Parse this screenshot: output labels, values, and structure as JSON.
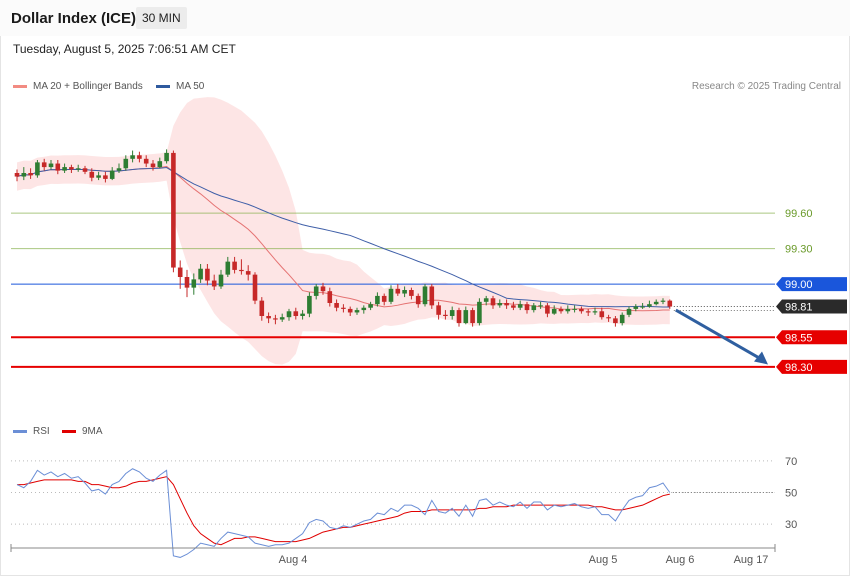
{
  "header": {
    "title": "Dollar Index (ICE)",
    "interval": "30 MIN",
    "timestamp": "Tuesday, August 5, 2025 7:06:51 AM CET"
  },
  "legend": {
    "ma20_label": "MA 20 + Bollinger Bands",
    "ma50_label": "MA 50",
    "credit": "Research © 2025 Trading Central",
    "rsi_label": "RSI",
    "ma9_label": "9MA"
  },
  "colors": {
    "up": "#2e7d32",
    "down": "#c62828",
    "band_fill": "#fde2e2",
    "ma20": "#e57373",
    "ma50": "#3f5fa8",
    "resistance": "#1a56db",
    "support": "#e60000",
    "pivot_green": "#86b04b",
    "last_price": "#2a2a2a",
    "forecast_arrow": "#2f5fa0",
    "rsi": "#6b8fd6",
    "rsi_ma": "#e00000"
  },
  "chart_data": [
    {
      "type": "candlestick",
      "ylim": [
        97.85,
        100.6
      ],
      "xlabels": [
        "Aug 4",
        "Aug 5",
        "Aug 6",
        "Aug 17"
      ],
      "levels": [
        {
          "value": 99.6,
          "label": "99.60",
          "kind": "pivot"
        },
        {
          "value": 99.3,
          "label": "99.30",
          "kind": "pivot"
        },
        {
          "value": 99.0,
          "label": "99.00",
          "kind": "resistance"
        },
        {
          "value": 98.55,
          "label": "98.55",
          "kind": "support"
        },
        {
          "value": 98.3,
          "label": "98.30",
          "kind": "support"
        }
      ],
      "last_price": {
        "value": 98.81,
        "label": "98.81"
      },
      "forecast": {
        "from": 98.78,
        "to": 98.32
      },
      "candles": [
        [
          99.94,
          99.91,
          99.97,
          99.87
        ],
        [
          99.91,
          99.94,
          99.99,
          99.88
        ],
        [
          99.94,
          99.92,
          99.98,
          99.89
        ],
        [
          99.92,
          100.03,
          100.05,
          99.9
        ],
        [
          100.03,
          99.99,
          100.06,
          99.96
        ],
        [
          99.99,
          100.02,
          100.05,
          99.97
        ],
        [
          100.02,
          99.96,
          100.05,
          99.93
        ],
        [
          99.96,
          99.99,
          100.02,
          99.94
        ],
        [
          99.99,
          99.97,
          100.01,
          99.94
        ],
        [
          99.97,
          99.98,
          100.01,
          99.95
        ],
        [
          99.98,
          99.95,
          100.0,
          99.93
        ],
        [
          99.95,
          99.9,
          99.98,
          99.87
        ],
        [
          99.9,
          99.92,
          99.95,
          99.88
        ],
        [
          99.92,
          99.89,
          99.95,
          99.86
        ],
        [
          99.89,
          99.96,
          99.99,
          99.88
        ],
        [
          99.96,
          99.98,
          100.02,
          99.94
        ],
        [
          99.98,
          100.06,
          100.09,
          99.96
        ],
        [
          100.06,
          100.09,
          100.13,
          100.03
        ],
        [
          100.09,
          100.06,
          100.12,
          100.03
        ],
        [
          100.06,
          100.02,
          100.09,
          99.99
        ],
        [
          100.02,
          99.99,
          100.05,
          99.96
        ],
        [
          99.99,
          100.04,
          100.07,
          99.98
        ],
        [
          100.04,
          100.11,
          100.14,
          100.02
        ],
        [
          100.11,
          99.14,
          100.13,
          99.1
        ],
        [
          99.14,
          99.06,
          99.2,
          98.96
        ],
        [
          99.06,
          98.97,
          99.12,
          98.89
        ],
        [
          98.97,
          99.04,
          99.09,
          98.91
        ],
        [
          99.04,
          99.13,
          99.17,
          99.01
        ],
        [
          99.13,
          99.03,
          99.17,
          98.99
        ],
        [
          99.03,
          98.98,
          99.08,
          98.95
        ],
        [
          98.98,
          99.08,
          99.12,
          98.96
        ],
        [
          99.08,
          99.19,
          99.23,
          99.06
        ],
        [
          99.19,
          99.12,
          99.23,
          99.09
        ],
        [
          99.12,
          99.11,
          99.21,
          99.08
        ],
        [
          99.11,
          99.08,
          99.16,
          99.03
        ],
        [
          99.08,
          98.86,
          99.1,
          98.83
        ],
        [
          98.86,
          98.73,
          98.89,
          98.69
        ],
        [
          98.73,
          98.71,
          98.76,
          98.67
        ],
        [
          98.71,
          98.7,
          98.74,
          98.66
        ],
        [
          98.7,
          98.72,
          98.75,
          98.68
        ],
        [
          98.72,
          98.77,
          98.79,
          98.69
        ],
        [
          98.77,
          98.73,
          98.8,
          98.7
        ],
        [
          98.73,
          98.75,
          98.78,
          98.7
        ],
        [
          98.75,
          98.9,
          98.93,
          98.72
        ],
        [
          98.9,
          98.98,
          99.0,
          98.87
        ],
        [
          98.98,
          98.94,
          99.01,
          98.91
        ],
        [
          98.94,
          98.84,
          98.97,
          98.81
        ],
        [
          98.84,
          98.8,
          98.87,
          98.77
        ],
        [
          98.8,
          98.79,
          98.83,
          98.76
        ],
        [
          98.79,
          98.76,
          98.81,
          98.73
        ],
        [
          98.76,
          98.78,
          98.8,
          98.74
        ],
        [
          98.78,
          98.8,
          98.82,
          98.75
        ],
        [
          98.8,
          98.83,
          98.85,
          98.78
        ],
        [
          98.83,
          98.9,
          98.93,
          98.81
        ],
        [
          98.9,
          98.85,
          98.92,
          98.82
        ],
        [
          98.85,
          98.96,
          98.99,
          98.83
        ],
        [
          98.96,
          98.92,
          99.0,
          98.9
        ],
        [
          98.92,
          98.95,
          98.98,
          98.89
        ],
        [
          98.95,
          98.9,
          98.97,
          98.87
        ],
        [
          98.9,
          98.83,
          98.92,
          98.8
        ],
        [
          98.83,
          98.98,
          99.0,
          98.81
        ],
        [
          98.98,
          98.82,
          99.0,
          98.79
        ],
        [
          98.82,
          98.74,
          98.85,
          98.7
        ],
        [
          98.74,
          98.73,
          98.78,
          98.7
        ],
        [
          98.73,
          98.78,
          98.81,
          98.7
        ],
        [
          98.78,
          98.67,
          98.8,
          98.64
        ],
        [
          98.67,
          98.78,
          98.81,
          98.66
        ],
        [
          98.78,
          98.67,
          98.8,
          98.64
        ],
        [
          98.67,
          98.85,
          98.88,
          98.65
        ],
        [
          98.85,
          98.88,
          98.9,
          98.82
        ],
        [
          98.88,
          98.82,
          98.9,
          98.79
        ],
        [
          98.82,
          98.84,
          98.87,
          98.8
        ],
        [
          98.84,
          98.82,
          98.87,
          98.79
        ],
        [
          98.82,
          98.8,
          98.85,
          98.78
        ],
        [
          98.8,
          98.83,
          98.86,
          98.78
        ],
        [
          98.83,
          98.78,
          98.85,
          98.75
        ],
        [
          98.78,
          98.82,
          98.84,
          98.76
        ],
        [
          98.82,
          98.82,
          98.85,
          98.79
        ],
        [
          98.82,
          98.75,
          98.84,
          98.72
        ],
        [
          98.75,
          98.79,
          98.82,
          98.74
        ],
        [
          98.79,
          98.77,
          98.81,
          98.75
        ],
        [
          98.77,
          98.79,
          98.82,
          98.75
        ],
        [
          98.79,
          98.79,
          98.82,
          98.76
        ],
        [
          98.79,
          98.77,
          98.81,
          98.75
        ],
        [
          98.77,
          98.76,
          98.79,
          98.73
        ],
        [
          98.76,
          98.77,
          98.8,
          98.74
        ],
        [
          98.77,
          98.72,
          98.8,
          98.7
        ],
        [
          98.72,
          98.71,
          98.74,
          98.68
        ],
        [
          98.71,
          98.67,
          98.73,
          98.64
        ],
        [
          98.67,
          98.74,
          98.76,
          98.65
        ],
        [
          98.74,
          98.79,
          98.81,
          98.72
        ],
        [
          98.79,
          98.81,
          98.83,
          98.77
        ],
        [
          98.81,
          98.81,
          98.84,
          98.79
        ],
        [
          98.81,
          98.83,
          98.86,
          98.8
        ],
        [
          98.83,
          98.85,
          98.87,
          98.82
        ],
        [
          98.85,
          98.86,
          98.88,
          98.83
        ],
        [
          98.86,
          98.81,
          98.87,
          98.79
        ]
      ]
    },
    {
      "type": "line",
      "ylim": [
        20,
        80
      ],
      "yticks": [
        {
          "value": 70,
          "label": "70"
        },
        {
          "value": 50,
          "label": "50"
        },
        {
          "value": 30,
          "label": "30"
        }
      ],
      "series": [
        {
          "name": "RSI",
          "values": [
            55,
            53,
            57,
            64,
            61,
            63,
            60,
            62,
            59,
            60,
            56,
            51,
            52,
            49,
            55,
            57,
            62,
            65,
            63,
            59,
            57,
            61,
            64,
            10,
            9,
            11,
            14,
            18,
            17,
            16,
            21,
            25,
            24,
            23,
            22,
            18,
            17,
            16,
            17,
            17,
            18,
            21,
            24,
            31,
            33,
            32,
            28,
            27,
            29,
            28,
            30,
            32,
            33,
            37,
            36,
            40,
            38,
            42,
            42,
            40,
            36,
            45,
            38,
            37,
            40,
            35,
            42,
            35,
            45,
            46,
            42,
            44,
            42,
            41,
            44,
            40,
            44,
            44,
            39,
            42,
            41,
            42,
            43,
            41,
            40,
            41,
            36,
            36,
            32,
            39,
            45,
            47,
            48,
            53,
            54,
            56,
            50
          ]
        },
        {
          "name": "9MA",
          "values": [
            55,
            55,
            56,
            57,
            58,
            58,
            58,
            58,
            58,
            57,
            57,
            55,
            55,
            54,
            53,
            53,
            54,
            56,
            57,
            57,
            58,
            59,
            60,
            55,
            46,
            37,
            29,
            24,
            21,
            18,
            17,
            19,
            21,
            21,
            22,
            22,
            21,
            20,
            19,
            19,
            19,
            19,
            20,
            21,
            23,
            25,
            26,
            27,
            28,
            28,
            29,
            30,
            31,
            32,
            33,
            34,
            35,
            37,
            38,
            38,
            38,
            39,
            39,
            39,
            39,
            39,
            39,
            39,
            40,
            40,
            41,
            41,
            41,
            42,
            42,
            42,
            42,
            42,
            42,
            42,
            42,
            42,
            42,
            42,
            42,
            41,
            41,
            40,
            39,
            39,
            40,
            41,
            42,
            44,
            46,
            48,
            49
          ]
        }
      ]
    }
  ]
}
